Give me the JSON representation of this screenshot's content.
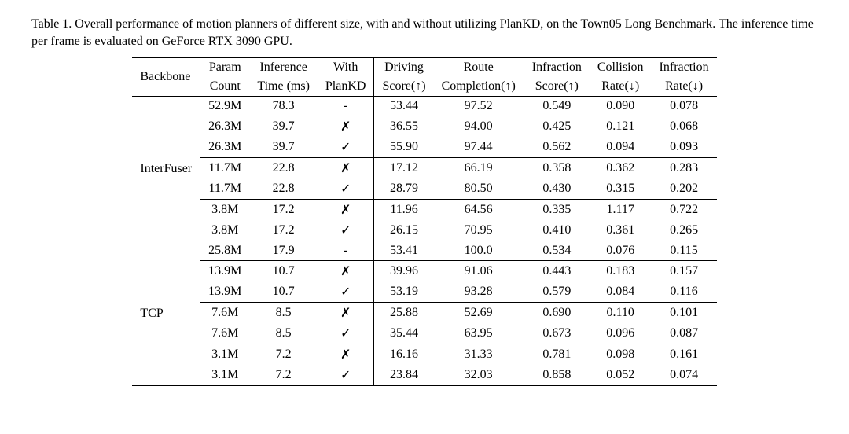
{
  "caption": "Table 1. Overall performance of motion planners of different size, with and without utilizing PlanKD, on the Town05 Long Benchmark. The inference time per frame is evaluated on GeForce RTX 3090 GPU.",
  "columns": {
    "backbone": "Backbone",
    "param_l1": "Param",
    "param_l2": "Count",
    "infer_l1": "Inference",
    "infer_l2": "Time (ms)",
    "with_l1": "With",
    "with_l2": "PlanKD",
    "drive_l1": "Driving",
    "drive_l2": "Score(↑)",
    "route_l1": "Route",
    "route_l2": "Completion(↑)",
    "infra_l1": "Infraction",
    "infra_l2": "Score(↑)",
    "coll_l1": "Collision",
    "coll_l2": "Rate(↓)",
    "infrar_l1": "Infraction",
    "infrar_l2": "Rate(↓)"
  },
  "marks": {
    "yes": "✓",
    "no": "✗",
    "dash": "-"
  },
  "groups": [
    {
      "backbone": "InterFuser",
      "blocks": [
        [
          {
            "param": "52.9M",
            "time": "78.3",
            "plankd": "dash",
            "drive": "53.44",
            "route": "97.52",
            "infra": "0.549",
            "coll": "0.090",
            "infrar": "0.078"
          }
        ],
        [
          {
            "param": "26.3M",
            "time": "39.7",
            "plankd": "no",
            "drive": "36.55",
            "route": "94.00",
            "infra": "0.425",
            "coll": "0.121",
            "infrar": "0.068"
          },
          {
            "param": "26.3M",
            "time": "39.7",
            "plankd": "yes",
            "drive": "55.90",
            "route": "97.44",
            "infra": "0.562",
            "coll": "0.094",
            "infrar": "0.093"
          }
        ],
        [
          {
            "param": "11.7M",
            "time": "22.8",
            "plankd": "no",
            "drive": "17.12",
            "route": "66.19",
            "infra": "0.358",
            "coll": "0.362",
            "infrar": "0.283"
          },
          {
            "param": "11.7M",
            "time": "22.8",
            "plankd": "yes",
            "drive": "28.79",
            "route": "80.50",
            "infra": "0.430",
            "coll": "0.315",
            "infrar": "0.202"
          }
        ],
        [
          {
            "param": "3.8M",
            "time": "17.2",
            "plankd": "no",
            "drive": "11.96",
            "route": "64.56",
            "infra": "0.335",
            "coll": "1.117",
            "infrar": "0.722"
          },
          {
            "param": "3.8M",
            "time": "17.2",
            "plankd": "yes",
            "drive": "26.15",
            "route": "70.95",
            "infra": "0.410",
            "coll": "0.361",
            "infrar": "0.265"
          }
        ]
      ]
    },
    {
      "backbone": "TCP",
      "blocks": [
        [
          {
            "param": "25.8M",
            "time": "17.9",
            "plankd": "dash",
            "drive": "53.41",
            "route": "100.0",
            "infra": "0.534",
            "coll": "0.076",
            "infrar": "0.115"
          }
        ],
        [
          {
            "param": "13.9M",
            "time": "10.7",
            "plankd": "no",
            "drive": "39.96",
            "route": "91.06",
            "infra": "0.443",
            "coll": "0.183",
            "infrar": "0.157"
          },
          {
            "param": "13.9M",
            "time": "10.7",
            "plankd": "yes",
            "drive": "53.19",
            "route": "93.28",
            "infra": "0.579",
            "coll": "0.084",
            "infrar": "0.116"
          }
        ],
        [
          {
            "param": "7.6M",
            "time": "8.5",
            "plankd": "no",
            "drive": "25.88",
            "route": "52.69",
            "infra": "0.690",
            "coll": "0.110",
            "infrar": "0.101"
          },
          {
            "param": "7.6M",
            "time": "8.5",
            "plankd": "yes",
            "drive": "35.44",
            "route": "63.95",
            "infra": "0.673",
            "coll": "0.096",
            "infrar": "0.087"
          }
        ],
        [
          {
            "param": "3.1M",
            "time": "7.2",
            "plankd": "no",
            "drive": "16.16",
            "route": "31.33",
            "infra": "0.781",
            "coll": "0.098",
            "infrar": "0.161"
          },
          {
            "param": "3.1M",
            "time": "7.2",
            "plankd": "yes",
            "drive": "23.84",
            "route": "32.03",
            "infra": "0.858",
            "coll": "0.052",
            "infrar": "0.074"
          }
        ]
      ]
    }
  ]
}
